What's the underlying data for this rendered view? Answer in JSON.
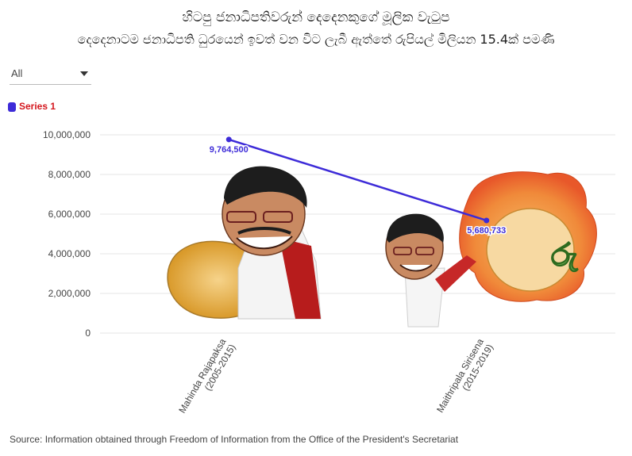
{
  "title": "හිටපු ජනාධිපතිවරුන් දෙදෙනකුගේ මූලික වැටුප",
  "subtitle": "දෙදෙනාටම ජනාධිපති ධුරයෙන් ඉවත් වන විට ලැබී ඇත්තේ රුපියල් මිලියන 15.4ක් පමණි",
  "filter": {
    "selected": "All"
  },
  "source": "Source: Information obtained through Freedom of Information from the Office of the President's Secretariat",
  "colors": {
    "series": "#3d2bd8",
    "legend_text": "#d4171e",
    "grid": "#e6e6e6"
  },
  "chart_data": {
    "type": "line",
    "categories": [
      [
        "Mahinda Rajapaksa",
        "(2005-2015)"
      ],
      [
        "Maithripala Sirisena",
        "(2015-2019)"
      ]
    ],
    "series": [
      {
        "name": "Series 1",
        "values": [
          9764500,
          5680733
        ],
        "labels": [
          "9,764,500",
          "5,680,733"
        ]
      }
    ],
    "yticks": [
      "0",
      "2,000,000",
      "4,000,000",
      "6,000,000",
      "8,000,000",
      "10,000,000"
    ],
    "ylim": [
      0,
      10000000
    ],
    "grid": true,
    "legend_position": "top-left"
  }
}
